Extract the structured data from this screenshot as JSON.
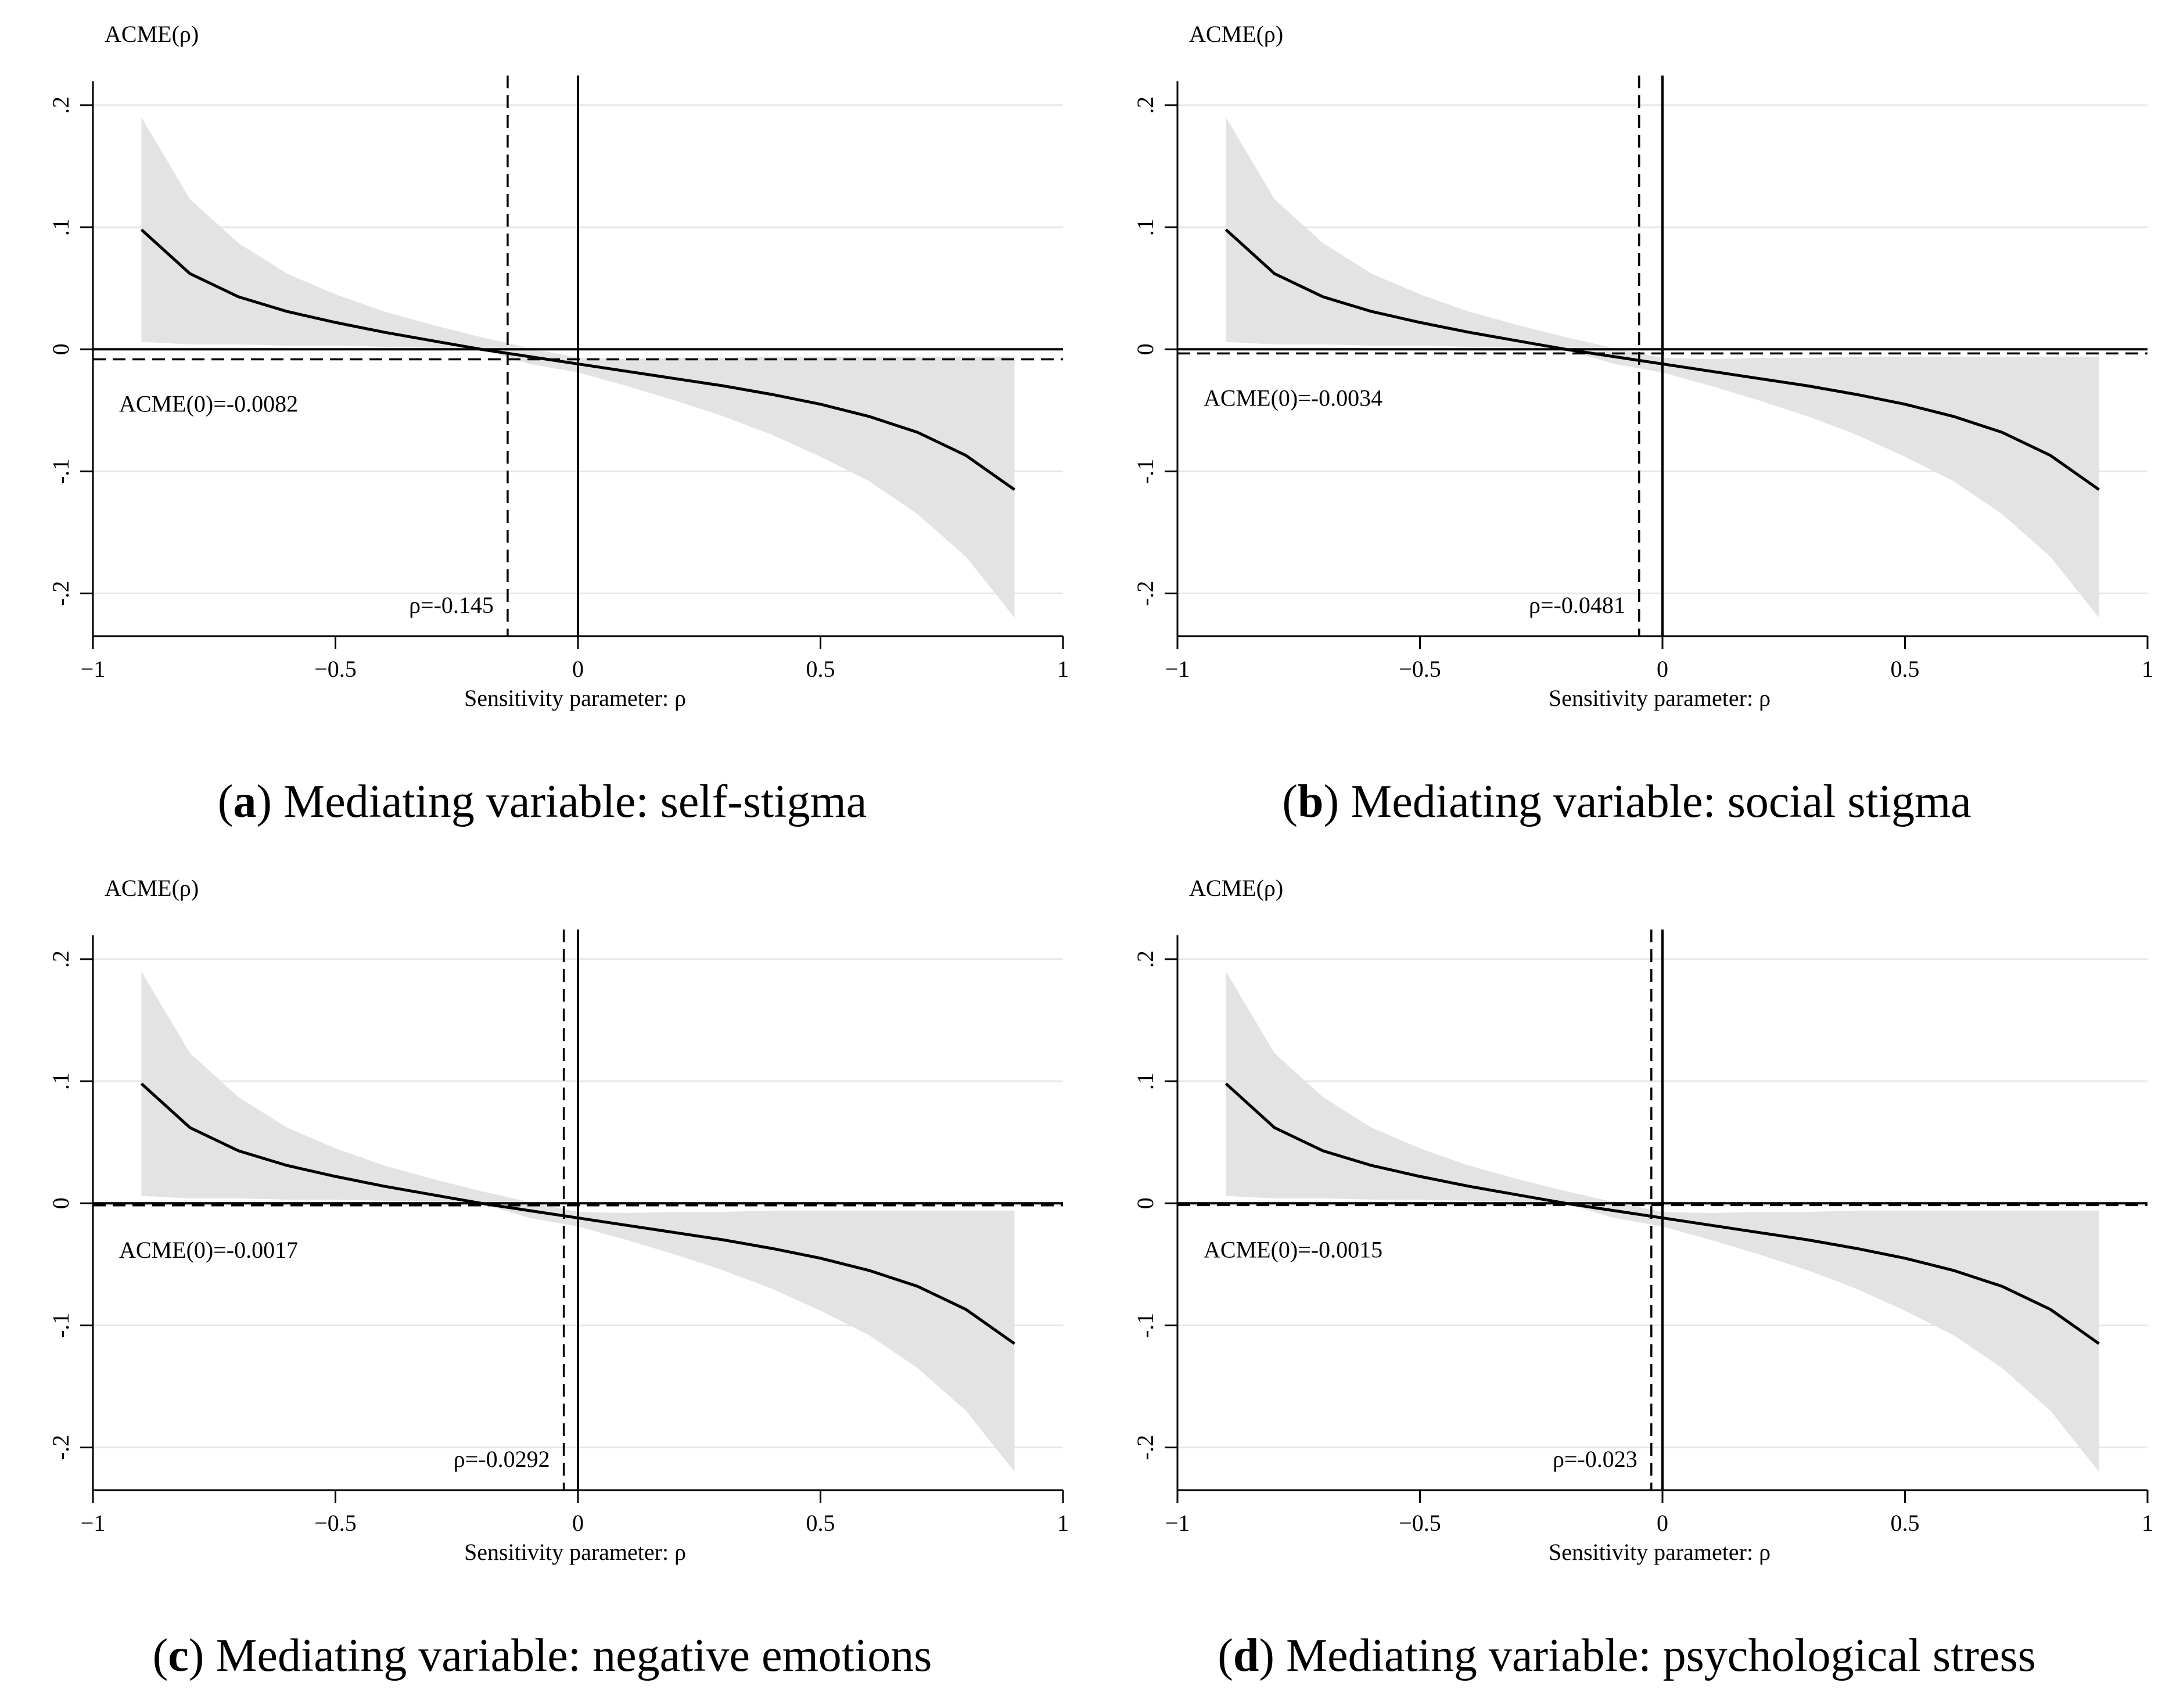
{
  "chart_data": [
    {
      "type": "line",
      "panel_letter": "a",
      "caption": "Mediating variable: self-stigma",
      "ylabel": "ACME(ρ)",
      "xlabel": "Sensitivity parameter: ρ",
      "xlim": [
        -1,
        1
      ],
      "ylim": [
        -0.235,
        0.21
      ],
      "xticks": [
        -1,
        -0.5,
        0,
        0.5,
        1
      ],
      "xtick_labels": [
        "−1",
        "−0.5",
        "0",
        "0.5",
        "1"
      ],
      "yticks": [
        0.2,
        0.1,
        0,
        -0.1,
        -0.2
      ],
      "ytick_labels": [
        ".2",
        ".1",
        "0",
        "-.1",
        "-.2"
      ],
      "grid": true,
      "acme_zero": -0.0082,
      "acme_label": "ACME(0)=-0.0082",
      "rho_zero": -0.145,
      "rho_label": "ρ=-0.145",
      "x": [
        -0.9,
        -0.8,
        -0.7,
        -0.6,
        -0.5,
        -0.4,
        -0.3,
        -0.2,
        -0.1,
        0,
        0.1,
        0.2,
        0.3,
        0.4,
        0.5,
        0.6,
        0.7,
        0.8,
        0.9
      ],
      "series": [
        {
          "values": [
            0.098,
            0.062,
            0.043,
            0.031,
            0.022,
            0.014,
            0.007,
            0.0,
            -0.006,
            -0.012,
            -0.018,
            -0.024,
            -0.03,
            -0.037,
            -0.045,
            -0.055,
            -0.068,
            -0.087,
            -0.115
          ]
        },
        {
          "values": [
            0.19,
            0.123,
            0.087,
            0.062,
            0.045,
            0.031,
            0.02,
            0.01,
            0.001,
            -0.007,
            -0.008,
            -0.007,
            -0.007,
            -0.006,
            -0.006,
            -0.006,
            -0.006,
            -0.006,
            -0.006
          ]
        },
        {
          "values": [
            0.006,
            0.004,
            0.004,
            0.003,
            0.003,
            0.002,
            0.001,
            0.0,
            -0.012,
            -0.019,
            -0.03,
            -0.042,
            -0.055,
            -0.07,
            -0.088,
            -0.108,
            -0.135,
            -0.17,
            -0.22
          ]
        }
      ]
    },
    {
      "type": "line",
      "panel_letter": "b",
      "caption": "Mediating variable: social stigma",
      "ylabel": "ACME(ρ)",
      "xlabel": "Sensitivity parameter: ρ",
      "xlim": [
        -1,
        1
      ],
      "ylim": [
        -0.235,
        0.21
      ],
      "xticks": [
        -1,
        -0.5,
        0,
        0.5,
        1
      ],
      "xtick_labels": [
        "−1",
        "−0.5",
        "0",
        "0.5",
        "1"
      ],
      "yticks": [
        0.2,
        0.1,
        0,
        -0.1,
        -0.2
      ],
      "ytick_labels": [
        ".2",
        ".1",
        "0",
        "-.1",
        "-.2"
      ],
      "grid": true,
      "acme_zero": -0.0034,
      "acme_label": "ACME(0)=-0.0034",
      "rho_zero": -0.0481,
      "rho_label": "ρ=-0.0481",
      "x": [
        -0.9,
        -0.8,
        -0.7,
        -0.6,
        -0.5,
        -0.4,
        -0.3,
        -0.2,
        -0.1,
        0,
        0.1,
        0.2,
        0.3,
        0.4,
        0.5,
        0.6,
        0.7,
        0.8,
        0.9
      ],
      "series": [
        {
          "values": [
            0.098,
            0.062,
            0.043,
            0.031,
            0.022,
            0.014,
            0.007,
            0.0,
            -0.006,
            -0.012,
            -0.018,
            -0.024,
            -0.03,
            -0.037,
            -0.045,
            -0.055,
            -0.068,
            -0.087,
            -0.115
          ]
        },
        {
          "values": [
            0.19,
            0.123,
            0.087,
            0.062,
            0.045,
            0.031,
            0.02,
            0.01,
            0.001,
            -0.007,
            -0.008,
            -0.007,
            -0.007,
            -0.006,
            -0.006,
            -0.006,
            -0.006,
            -0.006,
            -0.006
          ]
        },
        {
          "values": [
            0.006,
            0.004,
            0.004,
            0.003,
            0.003,
            0.002,
            0.001,
            0.0,
            -0.012,
            -0.019,
            -0.03,
            -0.042,
            -0.055,
            -0.07,
            -0.088,
            -0.108,
            -0.135,
            -0.17,
            -0.22
          ]
        }
      ]
    },
    {
      "type": "line",
      "panel_letter": "c",
      "caption": "Mediating variable: negative emotions",
      "ylabel": "ACME(ρ)",
      "xlabel": "Sensitivity parameter: ρ",
      "xlim": [
        -1,
        1
      ],
      "ylim": [
        -0.235,
        0.21
      ],
      "xticks": [
        -1,
        -0.5,
        0,
        0.5,
        1
      ],
      "xtick_labels": [
        "−1",
        "−0.5",
        "0",
        "0.5",
        "1"
      ],
      "yticks": [
        0.2,
        0.1,
        0,
        -0.1,
        -0.2
      ],
      "ytick_labels": [
        ".2",
        ".1",
        "0",
        "-.1",
        "-.2"
      ],
      "grid": true,
      "acme_zero": -0.0017,
      "acme_label": "ACME(0)=-0.0017",
      "rho_zero": -0.0292,
      "rho_label": "ρ=-0.0292",
      "x": [
        -0.9,
        -0.8,
        -0.7,
        -0.6,
        -0.5,
        -0.4,
        -0.3,
        -0.2,
        -0.1,
        0,
        0.1,
        0.2,
        0.3,
        0.4,
        0.5,
        0.6,
        0.7,
        0.8,
        0.9
      ],
      "series": [
        {
          "values": [
            0.098,
            0.062,
            0.043,
            0.031,
            0.022,
            0.014,
            0.007,
            0.0,
            -0.006,
            -0.012,
            -0.018,
            -0.024,
            -0.03,
            -0.037,
            -0.045,
            -0.055,
            -0.068,
            -0.087,
            -0.115
          ]
        },
        {
          "values": [
            0.19,
            0.123,
            0.087,
            0.062,
            0.045,
            0.031,
            0.02,
            0.01,
            0.001,
            -0.007,
            -0.008,
            -0.007,
            -0.007,
            -0.006,
            -0.006,
            -0.006,
            -0.006,
            -0.006,
            -0.006
          ]
        },
        {
          "values": [
            0.006,
            0.004,
            0.004,
            0.003,
            0.003,
            0.002,
            0.001,
            0.0,
            -0.012,
            -0.019,
            -0.03,
            -0.042,
            -0.055,
            -0.07,
            -0.088,
            -0.108,
            -0.135,
            -0.17,
            -0.22
          ]
        }
      ]
    },
    {
      "type": "line",
      "panel_letter": "d",
      "caption": "Mediating variable: psychological stress",
      "ylabel": "ACME(ρ)",
      "xlabel": "Sensitivity parameter: ρ",
      "xlim": [
        -1,
        1
      ],
      "ylim": [
        -0.235,
        0.21
      ],
      "xticks": [
        -1,
        -0.5,
        0,
        0.5,
        1
      ],
      "xtick_labels": [
        "−1",
        "−0.5",
        "0",
        "0.5",
        "1"
      ],
      "yticks": [
        0.2,
        0.1,
        0,
        -0.1,
        -0.2
      ],
      "ytick_labels": [
        ".2",
        ".1",
        "0",
        "-.1",
        "-.2"
      ],
      "grid": true,
      "acme_zero": -0.0015,
      "acme_label": "ACME(0)=-0.0015",
      "rho_zero": -0.023,
      "rho_label": "ρ=-0.023",
      "x": [
        -0.9,
        -0.8,
        -0.7,
        -0.6,
        -0.5,
        -0.4,
        -0.3,
        -0.2,
        -0.1,
        0,
        0.1,
        0.2,
        0.3,
        0.4,
        0.5,
        0.6,
        0.7,
        0.8,
        0.9
      ],
      "series": [
        {
          "values": [
            0.098,
            0.062,
            0.043,
            0.031,
            0.022,
            0.014,
            0.007,
            0.0,
            -0.006,
            -0.012,
            -0.018,
            -0.024,
            -0.03,
            -0.037,
            -0.045,
            -0.055,
            -0.068,
            -0.087,
            -0.115
          ]
        },
        {
          "values": [
            0.19,
            0.123,
            0.087,
            0.062,
            0.045,
            0.031,
            0.02,
            0.01,
            0.001,
            -0.007,
            -0.008,
            -0.007,
            -0.007,
            -0.006,
            -0.006,
            -0.006,
            -0.006,
            -0.006,
            -0.006
          ]
        },
        {
          "values": [
            0.006,
            0.004,
            0.004,
            0.003,
            0.003,
            0.002,
            0.001,
            0.0,
            -0.012,
            -0.019,
            -0.03,
            -0.042,
            -0.055,
            -0.07,
            -0.088,
            -0.108,
            -0.135,
            -0.17,
            -0.22
          ]
        }
      ]
    }
  ]
}
